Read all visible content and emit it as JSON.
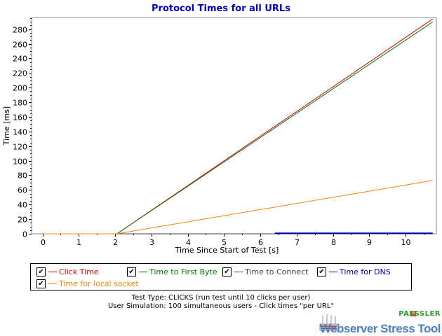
{
  "chart_data": {
    "type": "line",
    "title": "Protocol Times for all URLs",
    "xlabel": "Time Since Start of Test [s]",
    "ylabel": "Time [ms]",
    "xlim": [
      -0.3,
      10.85
    ],
    "ylim": [
      0,
      296
    ],
    "x_ticks": [
      0,
      1,
      2,
      3,
      4,
      5,
      6,
      7,
      8,
      9,
      10
    ],
    "y_ticks": [
      0,
      20,
      40,
      60,
      80,
      100,
      120,
      140,
      160,
      180,
      200,
      220,
      240,
      260,
      280
    ],
    "grid": false,
    "series": [
      {
        "name": "Click Time",
        "color": "#e00000",
        "width": 1,
        "points": [
          [
            0,
            0
          ],
          [
            2.05,
            0
          ],
          [
            10.75,
            294
          ]
        ]
      },
      {
        "name": "Time to First Byte",
        "color": "#007800",
        "width": 1,
        "points": [
          [
            0,
            0
          ],
          [
            2.05,
            0
          ],
          [
            10.75,
            290
          ]
        ]
      },
      {
        "name": "Time to Connect",
        "color": "#404040",
        "width": 1,
        "points": [
          [
            0,
            0
          ],
          [
            10.75,
            0
          ]
        ]
      },
      {
        "name": "Time for DNS",
        "color": "#0000b0",
        "width": 2,
        "points": [
          [
            6.4,
            0.8
          ],
          [
            10.75,
            0.8
          ]
        ]
      },
      {
        "name": "Time for local socket",
        "color": "#ff8000",
        "width": 1,
        "points": [
          [
            0,
            0
          ],
          [
            2.05,
            0
          ],
          [
            10.75,
            73
          ]
        ]
      }
    ]
  },
  "legend": {
    "items": [
      {
        "label": "Click Time",
        "color": "#e00000",
        "checked": true
      },
      {
        "label": "Time to First Byte",
        "color": "#007800",
        "checked": true
      },
      {
        "label": "Time to Connect",
        "color": "#404040",
        "checked": true
      },
      {
        "label": "Time for DNS",
        "color": "#0000b0",
        "checked": true
      },
      {
        "label": "Time for local socket",
        "color": "#ff8000",
        "checked": true
      }
    ]
  },
  "footer": {
    "test_type": "Test Type: CLICKS (run test until 10 clicks per user)",
    "user_simulation": "User Simulation: 100 simultaneous users - Click times \"per URL\""
  },
  "branding": {
    "company": "PAESSLER",
    "product": "Webserver Stress Tool",
    "icon": "server-rack-icon"
  }
}
